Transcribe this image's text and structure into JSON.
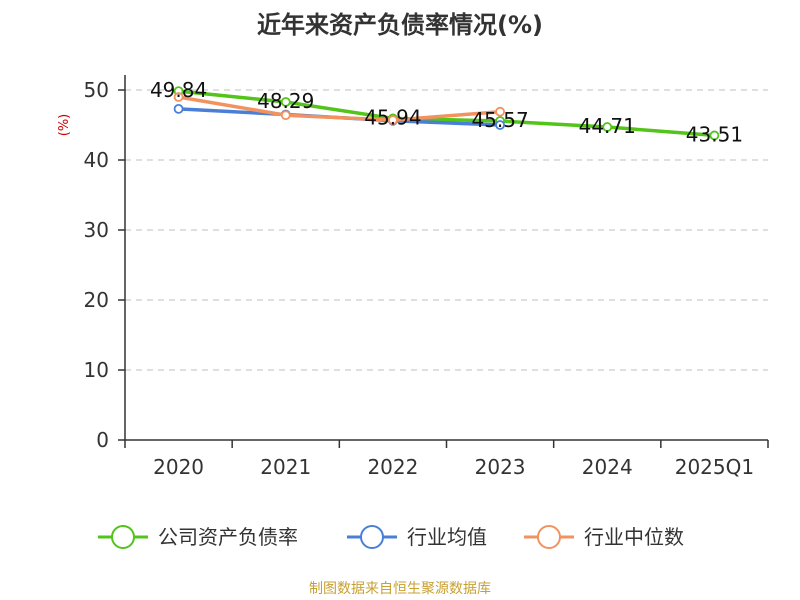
{
  "chart_data": {
    "type": "line",
    "title": "近年来资产负债率情况(%)",
    "ylabel": "(%)",
    "categories": [
      "2020",
      "2021",
      "2022",
      "2023",
      "2024",
      "2025Q1"
    ],
    "ylim": [
      0,
      50
    ],
    "yticks": [
      0,
      10,
      20,
      30,
      40,
      50
    ],
    "grid": true,
    "legend_position": "bottom",
    "series": [
      {
        "name": "公司资产负债率",
        "color": "#52c41a",
        "values": [
          49.84,
          48.29,
          45.94,
          45.57,
          44.71,
          43.51
        ],
        "labels": [
          "49.84",
          "48.29",
          "45.94",
          "45.57",
          "44.71",
          "43.51"
        ]
      },
      {
        "name": "行业均值",
        "color": "#4a7fd8",
        "values": [
          47.3,
          46.5,
          45.6,
          45.0,
          null,
          null
        ]
      },
      {
        "name": "行业中位数",
        "color": "#f2925e",
        "values": [
          49.0,
          46.4,
          45.7,
          46.9,
          null,
          null
        ]
      }
    ]
  },
  "source": "制图数据来自恒生聚源数据库",
  "colors": {
    "unit_label": "#cc0000",
    "source_text": "#c8a032",
    "axis": "#333333",
    "grid": "#cccccc"
  }
}
